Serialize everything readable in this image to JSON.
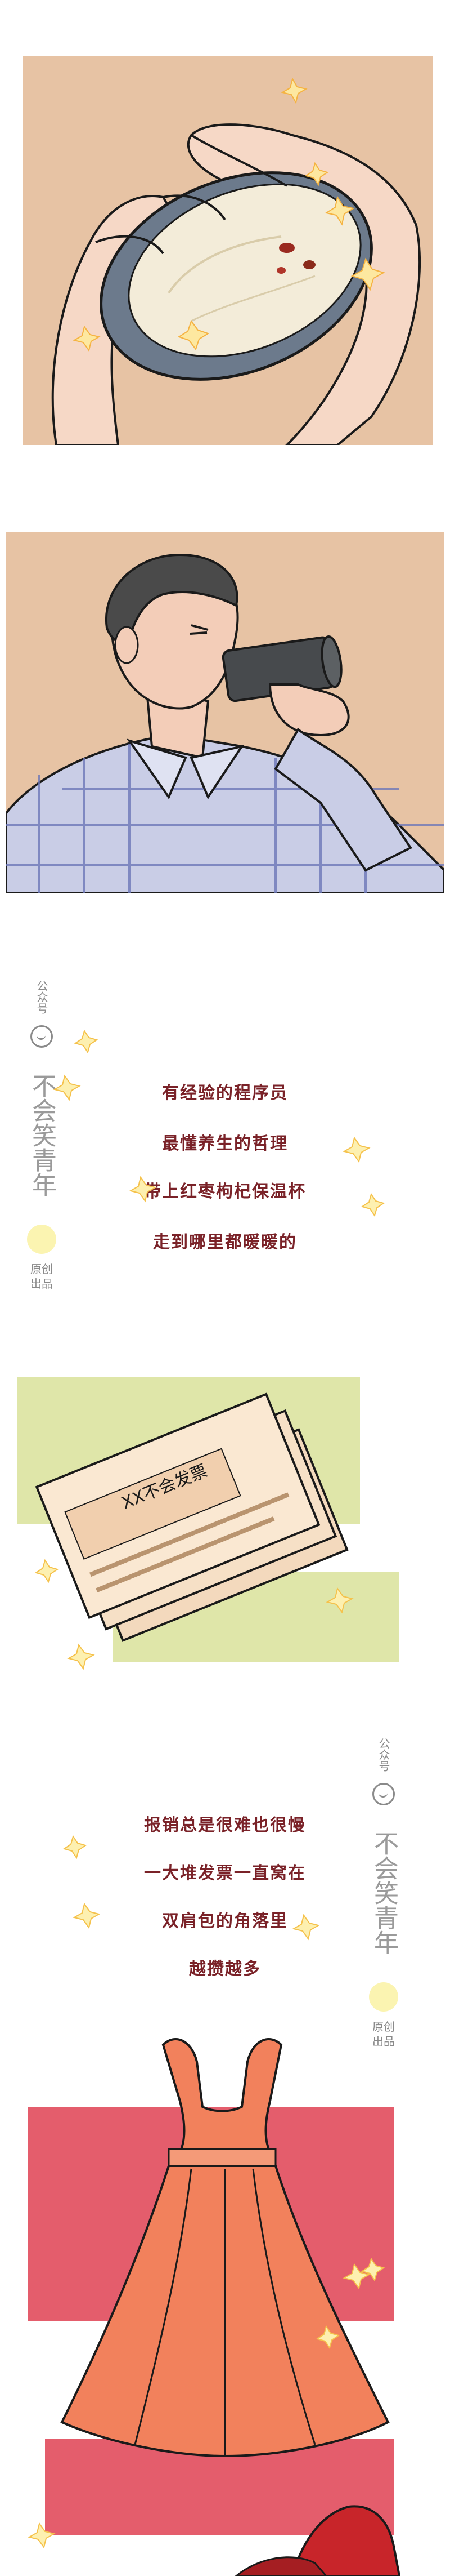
{
  "watermark": {
    "top_label": "公众号",
    "brand": "不会笑青年",
    "bottom_label": "原创出品"
  },
  "caption_1": {
    "lines": [
      "有经验的程序员",
      "最懂养生的哲理",
      "带上红枣枸杞保温杯",
      "走到哪里都暖暖的"
    ]
  },
  "receipts": {
    "text": "XX不会发票"
  },
  "caption_2": {
    "lines": [
      "报销总是很难也很慢",
      "一大堆发票一直窝在",
      "双肩包的角落里",
      "越攒越多"
    ]
  },
  "colors": {
    "caption": "#7a2228",
    "panel_tan": "#e7c3a4",
    "green_block": "#dfe6a9",
    "pink_block": "#e45d6c",
    "dress": "#f2815c"
  },
  "icons": [
    "sparkle-icon",
    "face-icon",
    "smiley-icon"
  ]
}
